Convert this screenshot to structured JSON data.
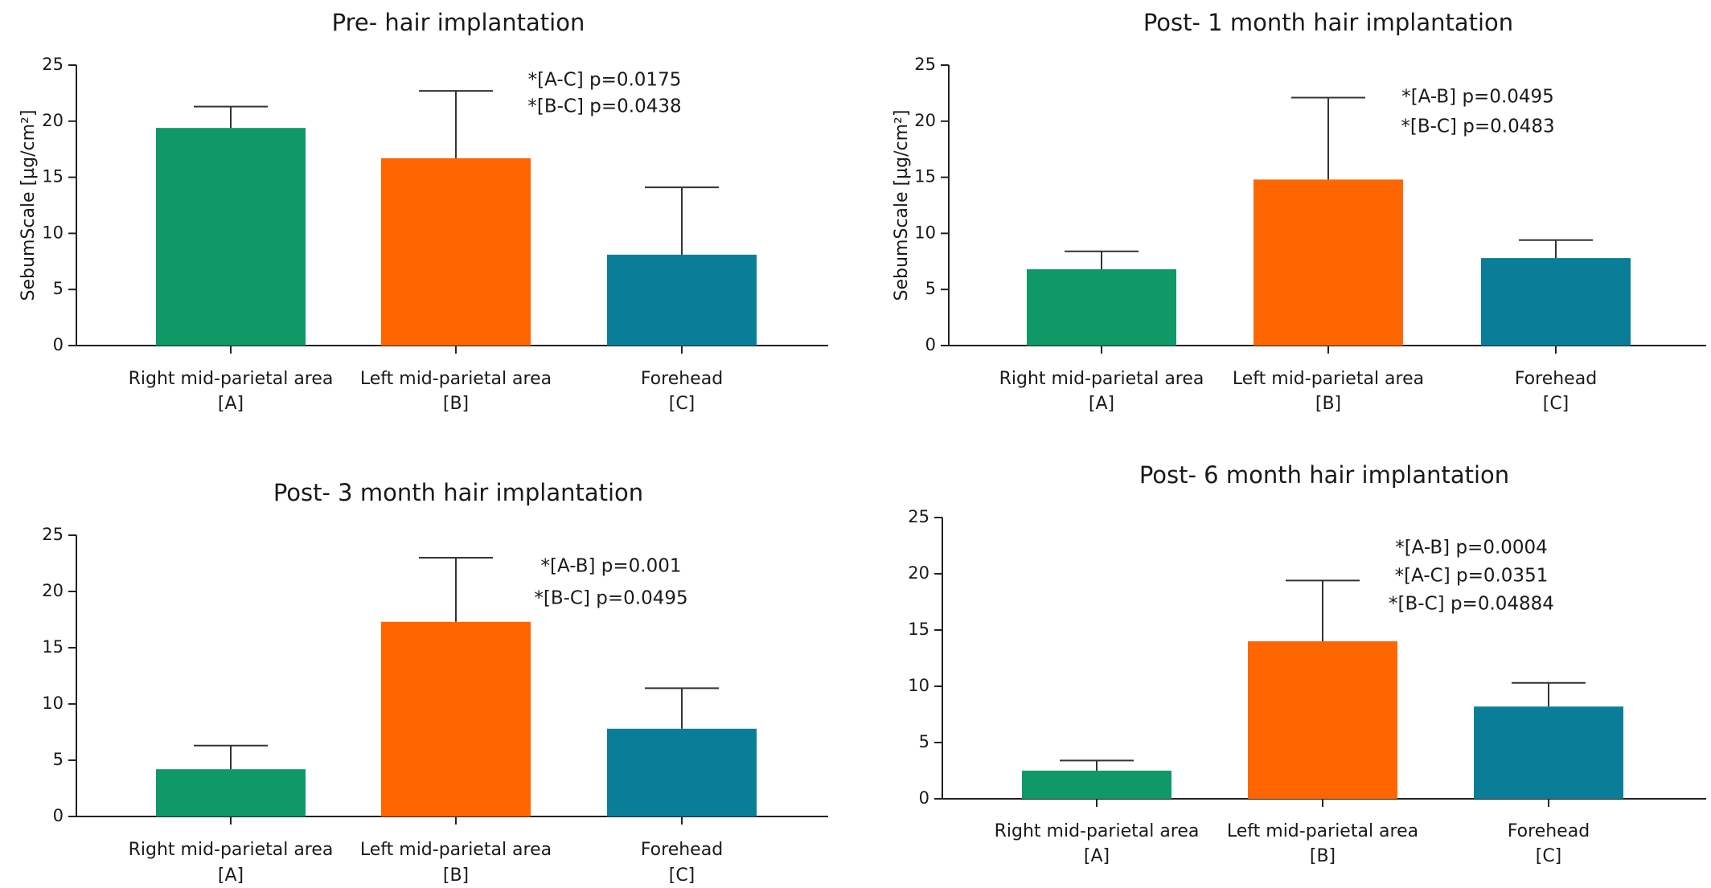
{
  "chart_data": [
    {
      "type": "bar",
      "title": "Pre- hair implantation",
      "ylabel": "SebumScale [µg/cm²]",
      "ylim": [
        0,
        25
      ],
      "yticks": [
        0,
        5,
        10,
        15,
        20,
        25
      ],
      "categories": [
        "Right mid-parietal area",
        "Left mid-parietal area",
        "Forehead"
      ],
      "category_codes": [
        "[A]",
        "[B]",
        "[C]"
      ],
      "values": [
        19.4,
        16.7,
        8.1
      ],
      "errors": [
        1.9,
        6.0,
        6.0
      ],
      "colors": [
        "#0e9966",
        "#ff6600",
        "#0a7e98"
      ],
      "annotations": [
        "*[A-C] p=0.0175",
        "*[B-C] p=0.0438"
      ],
      "grid": false
    },
    {
      "type": "bar",
      "title": "Post- 1 month hair implantation",
      "ylabel": "SebumScale [µg/cm²]",
      "ylim": [
        0,
        25
      ],
      "yticks": [
        0,
        5,
        10,
        15,
        20,
        25
      ],
      "categories": [
        "Right mid-parietal area",
        "Left mid-parietal area",
        "Forehead"
      ],
      "category_codes": [
        "[A]",
        "[B]",
        "[C]"
      ],
      "values": [
        6.8,
        14.8,
        7.8
      ],
      "errors": [
        1.6,
        7.3,
        1.6
      ],
      "colors": [
        "#0e9966",
        "#ff6600",
        "#0a7e98"
      ],
      "annotations": [
        "*[A-B] p=0.0495",
        "*[B-C] p=0.0483"
      ],
      "grid": false
    },
    {
      "type": "bar",
      "title": "Post- 3 month hair implantation",
      "ylabel": "",
      "ylim": [
        0,
        25
      ],
      "yticks": [
        0,
        5,
        10,
        15,
        20,
        25
      ],
      "categories": [
        "Right mid-parietal area",
        "Left mid-parietal area",
        "Forehead"
      ],
      "category_codes": [
        "[A]",
        "[B]",
        "[C]"
      ],
      "values": [
        4.2,
        17.3,
        7.8
      ],
      "errors": [
        2.1,
        5.7,
        3.6
      ],
      "colors": [
        "#0e9966",
        "#ff6600",
        "#0a7e98"
      ],
      "annotations": [
        "*[A-B] p=0.001",
        "*[B-C] p=0.0495"
      ],
      "grid": false
    },
    {
      "type": "bar",
      "title": "Post- 6 month hair implantation",
      "ylabel": "",
      "ylim": [
        0,
        25
      ],
      "yticks": [
        0,
        5,
        10,
        15,
        20,
        25
      ],
      "categories": [
        "Right mid-parietal area",
        "Left mid-parietal area",
        "Forehead"
      ],
      "category_codes": [
        "[A]",
        "[B]",
        "[C]"
      ],
      "values": [
        2.5,
        14.0,
        8.2
      ],
      "errors": [
        0.9,
        5.4,
        2.1
      ],
      "colors": [
        "#0e9966",
        "#ff6600",
        "#0a7e98"
      ],
      "annotations": [
        "*[A-B] p=0.0004",
        "*[A-C] p=0.0351",
        "*[B-C] p=0.04884"
      ],
      "grid": false
    }
  ]
}
